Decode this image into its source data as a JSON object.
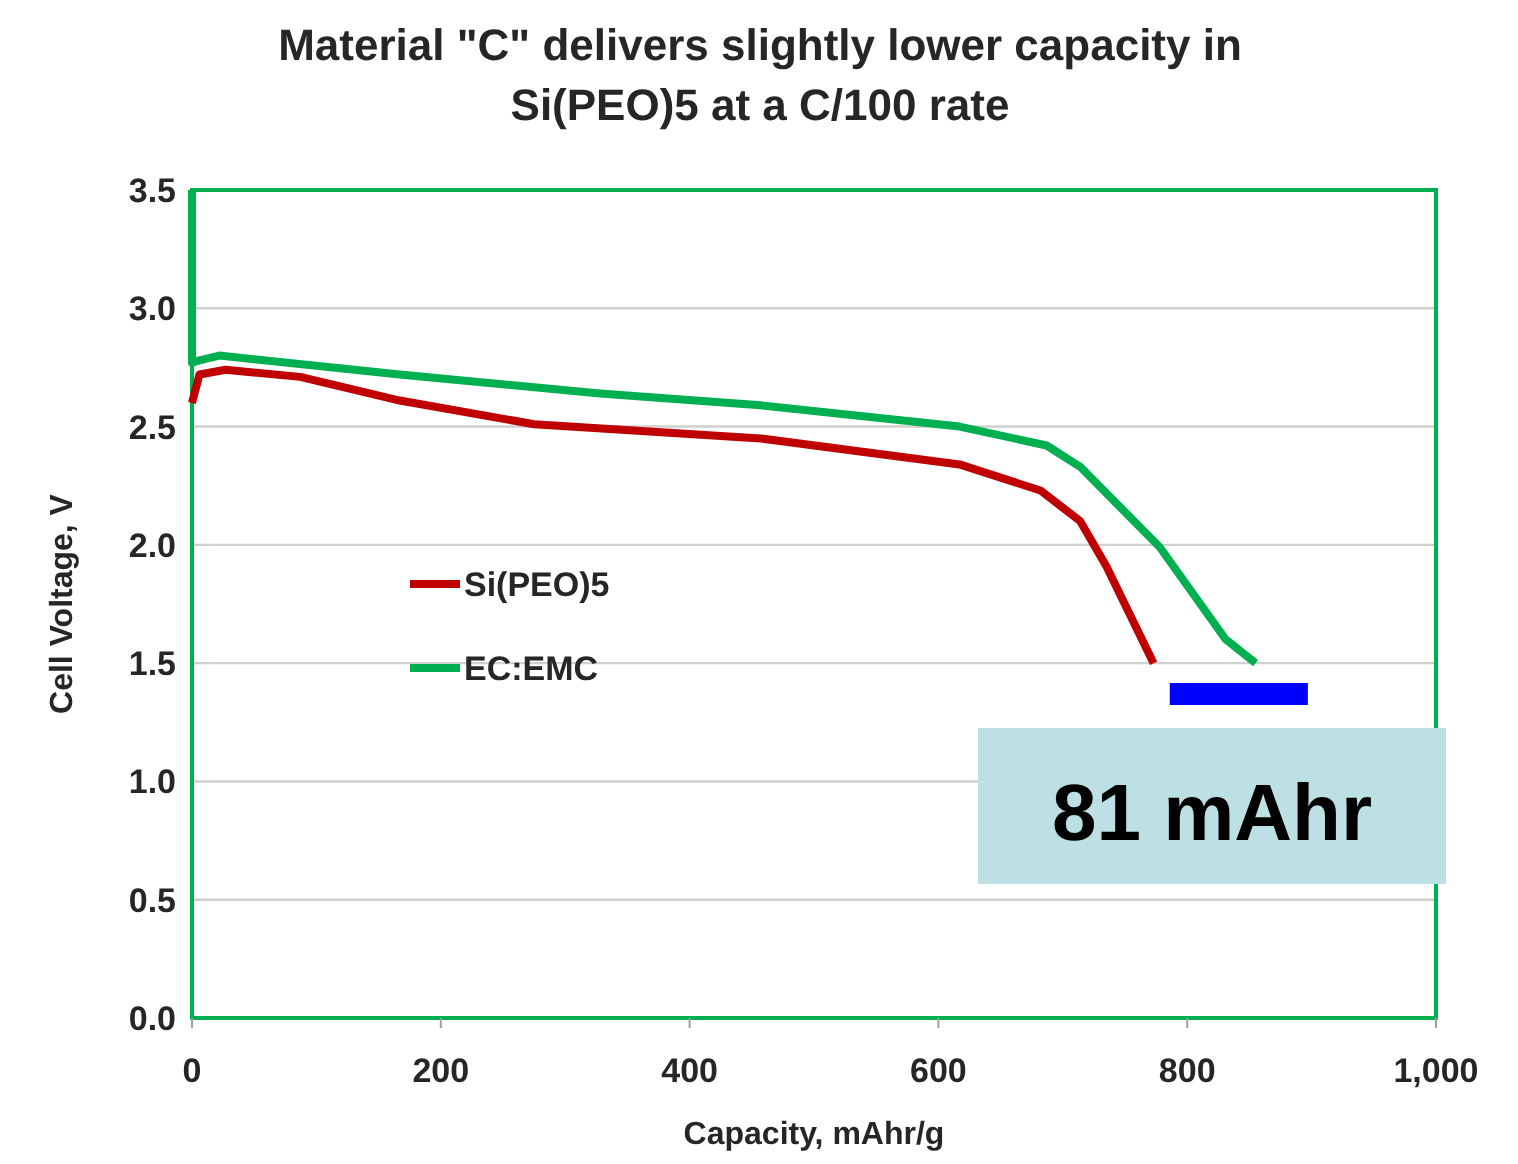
{
  "chart_data": {
    "type": "line",
    "title": "Material \"C\" delivers slightly lower capacity in Si(PEO)5 at a C/100 rate",
    "xlabel": "Capacity, mAhr/g",
    "ylabel": "Cell Voltage, V",
    "xlim": [
      0,
      1000
    ],
    "ylim": [
      0,
      3.5
    ],
    "xticks": [
      0,
      200,
      400,
      600,
      800,
      {
        "value": 1000,
        "label": "1,000"
      }
    ],
    "yticks": [
      {
        "value": 0,
        "label": "0.0"
      },
      {
        "value": 0.5,
        "label": "0.5"
      },
      {
        "value": 1,
        "label": "1.0"
      },
      {
        "value": 1.5,
        "label": "1.5"
      },
      {
        "value": 2,
        "label": "2.0"
      },
      {
        "value": 2.5,
        "label": "2.5"
      },
      {
        "value": 3,
        "label": "3.0"
      },
      {
        "value": 3.5,
        "label": "3.5"
      }
    ],
    "grid": "y",
    "legend": "center left",
    "marker": "none",
    "line_style": "solid",
    "annotations": [
      "81 mAhr"
    ],
    "series": [
      {
        "name": "Si(PEO)5",
        "color": "#c00000",
        "x": [
          0,
          6,
          27,
          87,
          167,
          275,
          457,
          617,
          682,
          714,
          735,
          773
        ],
        "values": [
          2.6,
          2.72,
          2.74,
          2.71,
          2.61,
          2.51,
          2.45,
          2.34,
          2.23,
          2.1,
          1.91,
          1.5
        ]
      },
      {
        "name": "EC:EMC",
        "color": "#00b050",
        "x": [
          0,
          0,
          6,
          22,
          167,
          328,
          457,
          617,
          687,
          714,
          778,
          831,
          855
        ],
        "values": [
          3.5,
          2.77,
          2.78,
          2.8,
          2.72,
          2.64,
          2.59,
          2.5,
          2.42,
          2.33,
          1.99,
          1.6,
          1.5
        ]
      },
      {
        "color": "#0000ff",
        "x": [
          786,
          897
        ],
        "values": [
          1.37,
          1.37
        ]
      }
    ]
  }
}
